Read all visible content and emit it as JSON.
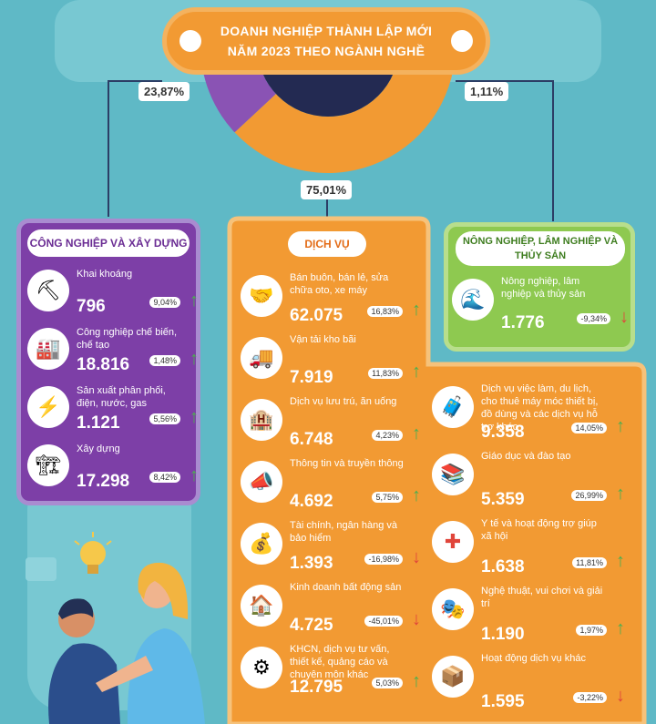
{
  "title": {
    "line1": "DOANH NGHIỆP THÀNH LẬP MỚI",
    "line2": "NĂM 2023 THEO NGÀNH NGHỀ"
  },
  "chart_data": {
    "type": "pie",
    "categories": [
      "Công nghiệp và xây dựng",
      "Dịch vụ",
      "Nông nghiệp, lâm nghiệp và thủy sản"
    ],
    "values": [
      23.87,
      75.01,
      1.11
    ],
    "labels": [
      "23,87%",
      "75,01%",
      "1,11%"
    ],
    "colors": [
      "#8a53b4",
      "#f29a33",
      "#7cc24a"
    ]
  },
  "colors": {
    "purple": "#7d3fa7",
    "orange": "#f29a33",
    "green": "#8ec950",
    "up": "#4caf50",
    "down": "#e0453a"
  },
  "sectors": {
    "industry": {
      "title": "CÔNG NGHIỆP VÀ XÂY DỰNG",
      "items": [
        {
          "name": "Khai khoáng",
          "value": "796",
          "pct": "9,04%",
          "dir": "up",
          "icon": "mining-icon"
        },
        {
          "name": "Công nghiệp chế biến, chế tạo",
          "value": "18.816",
          "pct": "1,48%",
          "dir": "up",
          "icon": "factory-icon"
        },
        {
          "name": "Sản xuất phân phối, điện, nước, gas",
          "value": "1.121",
          "pct": "5,56%",
          "dir": "up",
          "icon": "utility-icon"
        },
        {
          "name": "Xây dựng",
          "value": "17.298",
          "pct": "8,42%",
          "dir": "up",
          "icon": "crane-icon"
        }
      ]
    },
    "services": {
      "title": "DỊCH VỤ",
      "left": [
        {
          "name": "Bán buôn, bán lẻ, sửa chữa oto, xe máy",
          "value": "62.075",
          "pct": "16,83%",
          "dir": "up",
          "icon": "handshake-icon"
        },
        {
          "name": "Vận tải kho bãi",
          "value": "7.919",
          "pct": "11,83%",
          "dir": "up",
          "icon": "truck-icon"
        },
        {
          "name": "Dịch vụ lưu trú, ăn uống",
          "value": "6.748",
          "pct": "4,23%",
          "dir": "up",
          "icon": "hotel-icon"
        },
        {
          "name": "Thông tin và truyền thông",
          "value": "4.692",
          "pct": "5,75%",
          "dir": "up",
          "icon": "megaphone-icon"
        },
        {
          "name": "Tài chính, ngân hàng và bảo hiểm",
          "value": "1.393",
          "pct": "-16,98%",
          "dir": "down",
          "icon": "finance-icon"
        },
        {
          "name": "Kinh doanh bất động sản",
          "value": "4.725",
          "pct": "-45,01%",
          "dir": "down",
          "icon": "house-icon"
        },
        {
          "name": "KHCN, dịch vụ tư vấn, thiết kế, quảng cáo và chuyên môn khác",
          "value": "12.795",
          "pct": "5,03%",
          "dir": "up",
          "icon": "gear-icon"
        }
      ],
      "right": [
        {
          "name": "Dịch vụ việc làm, du lịch, cho thuê máy móc thiết bị, đồ dùng và các dịch vụ hỗ trợ khác",
          "value": "9.358",
          "pct": "14,05%",
          "dir": "up",
          "icon": "jobs-icon"
        },
        {
          "name": "Giáo dục và đào tạo",
          "value": "5.359",
          "pct": "26,99%",
          "dir": "up",
          "icon": "education-icon"
        },
        {
          "name": "Y tế và hoạt động trợ giúp xã hội",
          "value": "1.638",
          "pct": "11,81%",
          "dir": "up",
          "icon": "medical-icon"
        },
        {
          "name": "Nghệ thuật, vui chơi và giải trí",
          "value": "1.190",
          "pct": "1,97%",
          "dir": "up",
          "icon": "masks-icon"
        },
        {
          "name": "Hoạt động dịch vụ khác",
          "value": "1.595",
          "pct": "-3,22%",
          "dir": "down",
          "icon": "box-icon"
        }
      ]
    },
    "agriculture": {
      "title": "NÔNG NGHIỆP, LÂM NGHIỆP VÀ THỦY SẢN",
      "items": [
        {
          "name": "Nông nghiệp, lâm nghiệp và thủy sản",
          "value": "1.776",
          "pct": "-9,34%",
          "dir": "down",
          "icon": "river-icon"
        }
      ]
    }
  }
}
